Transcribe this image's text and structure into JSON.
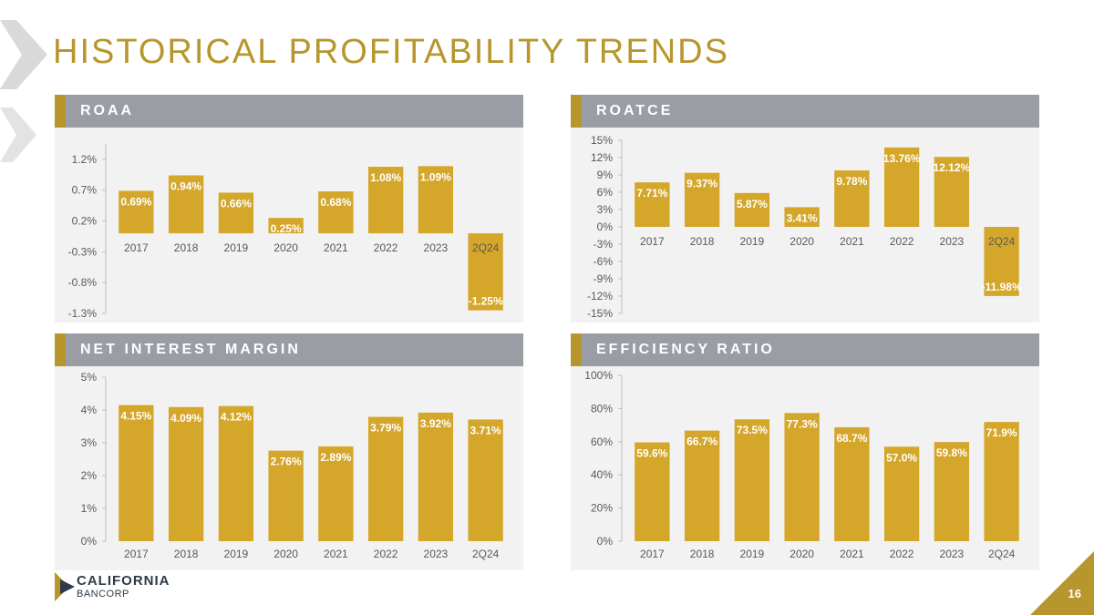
{
  "title": "HISTORICAL PROFITABILITY TRENDS",
  "logo": {
    "line1": "CALIFORNIA",
    "line2": "BANCORP"
  },
  "page_number": "16",
  "colors": {
    "gold": "#D4A62A",
    "gold_dark": "#b8962e",
    "header_gray": "#9a9da4",
    "panel_bg": "#f2f2f2"
  },
  "chart_data": [
    {
      "id": "roaa",
      "type": "bar",
      "title": "ROAA",
      "categories": [
        "2017",
        "2018",
        "2019",
        "2020",
        "2021",
        "2022",
        "2023",
        "2Q24"
      ],
      "values": [
        0.69,
        0.94,
        0.66,
        0.25,
        0.68,
        1.08,
        1.09,
        -1.25
      ],
      "value_labels": [
        "0.69%",
        "0.94%",
        "0.66%",
        "0.25%",
        "0.68%",
        "1.08%",
        "1.09%",
        "-1.25%"
      ],
      "yticks": [
        1.2,
        0.7,
        0.2,
        -0.3,
        -0.8,
        -1.3
      ],
      "ytick_labels": [
        "1.2%",
        "0.7%",
        "0.2%",
        "-0.3%",
        "-0.8%",
        "-1.3%"
      ],
      "ylim": [
        -1.3,
        1.45
      ]
    },
    {
      "id": "roatce",
      "type": "bar",
      "title": "ROATCE",
      "categories": [
        "2017",
        "2018",
        "2019",
        "2020",
        "2021",
        "2022",
        "2023",
        "2Q24"
      ],
      "values": [
        7.71,
        9.37,
        5.87,
        3.41,
        9.78,
        13.76,
        12.12,
        -11.98
      ],
      "value_labels": [
        "7.71%",
        "9.37%",
        "5.87%",
        "3.41%",
        "9.78%",
        "13.76%",
        "12.12%",
        "-11.98%"
      ],
      "yticks": [
        15,
        12,
        9,
        6,
        3,
        0,
        -3,
        -6,
        -9,
        -12,
        -15
      ],
      "ytick_labels": [
        "15%",
        "12%",
        "9%",
        "6%",
        "3%",
        "0%",
        "-3%",
        "-6%",
        "-9%",
        "-12%",
        "-15%"
      ],
      "ylim": [
        -15,
        15
      ]
    },
    {
      "id": "nim",
      "type": "bar",
      "title": "NET INTEREST MARGIN",
      "categories": [
        "2017",
        "2018",
        "2019",
        "2020",
        "2021",
        "2022",
        "2023",
        "2Q24"
      ],
      "values": [
        4.15,
        4.09,
        4.12,
        2.76,
        2.89,
        3.79,
        3.92,
        3.71
      ],
      "value_labels": [
        "4.15%",
        "4.09%",
        "4.12%",
        "2.76%",
        "2.89%",
        "3.79%",
        "3.92%",
        "3.71%"
      ],
      "yticks": [
        5,
        4,
        3,
        2,
        1,
        0
      ],
      "ytick_labels": [
        "5%",
        "4%",
        "3%",
        "2%",
        "1%",
        "0%"
      ],
      "ylim": [
        0,
        5
      ]
    },
    {
      "id": "efficiency",
      "type": "bar",
      "title": "EFFICIENCY RATIO",
      "categories": [
        "2017",
        "2018",
        "2019",
        "2020",
        "2021",
        "2022",
        "2023",
        "2Q24"
      ],
      "values": [
        59.6,
        66.7,
        73.5,
        77.3,
        68.7,
        57.0,
        59.8,
        71.9
      ],
      "value_labels": [
        "59.6%",
        "66.7%",
        "73.5%",
        "77.3%",
        "68.7%",
        "57.0%",
        "59.8%",
        "71.9%"
      ],
      "yticks": [
        100,
        80,
        60,
        40,
        20,
        0
      ],
      "ytick_labels": [
        "100%",
        "80%",
        "60%",
        "40%",
        "20%",
        "0%"
      ],
      "ylim": [
        0,
        100
      ]
    }
  ]
}
